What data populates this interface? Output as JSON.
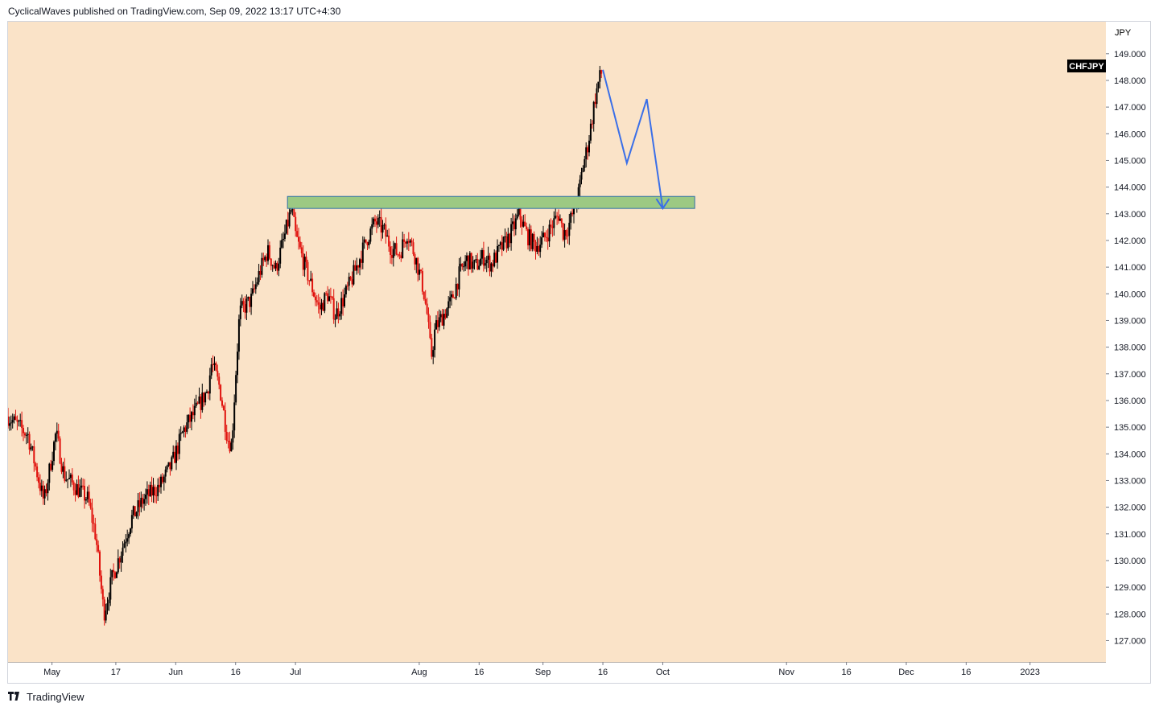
{
  "header": {
    "attribution": "CyclicalWaves published on TradingView.com, Sep 09, 2022 13:17 UTC+4:30"
  },
  "footer": {
    "brand": "TradingView",
    "brand_icon": "tradingview-logo-icon"
  },
  "colors": {
    "background": "#fae3c8",
    "up_candle": "#000000",
    "down_candle": "#e0120d",
    "zone_fill": "#9cc983",
    "zone_border": "#2e6fa8",
    "projection": "#3a6fe8",
    "symbol_badge_bg": "#000000",
    "symbol_badge_text": "#ffffff"
  },
  "chart_data": {
    "type": "candlestick",
    "symbol": "CHFJPY",
    "currency_label": "JPY",
    "ylim": [
      126.2,
      150.2
    ],
    "y_ticks": [
      127,
      128,
      129,
      130,
      131,
      132,
      133,
      134,
      135,
      136,
      137,
      138,
      139,
      140,
      141,
      142,
      143,
      144,
      145,
      146,
      147,
      148,
      149
    ],
    "y_tick_labels": [
      "127.000",
      "128.000",
      "129.000",
      "130.000",
      "131.000",
      "132.000",
      "133.000",
      "134.000",
      "135.000",
      "136.000",
      "137.000",
      "138.000",
      "139.000",
      "140.000",
      "141.000",
      "142.000",
      "143.000",
      "144.000",
      "145.000",
      "146.000",
      "147.000",
      "148.000",
      "149.000"
    ],
    "x_range": [
      "2022-04-20",
      "2023-01-20"
    ],
    "x_ticks": [
      {
        "date": "2022-05-01",
        "label": "May"
      },
      {
        "date": "2022-05-17",
        "label": "17"
      },
      {
        "date": "2022-06-01",
        "label": "Jun"
      },
      {
        "date": "2022-06-16",
        "label": "16"
      },
      {
        "date": "2022-07-01",
        "label": "Jul"
      },
      {
        "date": "2022-08-01",
        "label": "Aug"
      },
      {
        "date": "2022-08-16",
        "label": "16"
      },
      {
        "date": "2022-09-01",
        "label": "Sep"
      },
      {
        "date": "2022-09-16",
        "label": "16"
      },
      {
        "date": "2022-10-01",
        "label": "Oct"
      },
      {
        "date": "2022-11-01",
        "label": "Nov"
      },
      {
        "date": "2022-11-16",
        "label": "16"
      },
      {
        "date": "2022-12-01",
        "label": "Dec"
      },
      {
        "date": "2022-12-16",
        "label": "16"
      },
      {
        "date": "2023-01-01",
        "label": "2023"
      }
    ],
    "price_path": [
      [
        "2022-04-20",
        135.4
      ],
      [
        "2022-04-25",
        134.7
      ],
      [
        "2022-04-29",
        132.2
      ],
      [
        "2022-05-02",
        134.8
      ],
      [
        "2022-05-04",
        133.2
      ],
      [
        "2022-05-08",
        132.6
      ],
      [
        "2022-05-10",
        132.3
      ],
      [
        "2022-05-12",
        130.9
      ],
      [
        "2022-05-14",
        128.0
      ],
      [
        "2022-05-16",
        129.3
      ],
      [
        "2022-05-18",
        130.2
      ],
      [
        "2022-05-21",
        131.6
      ],
      [
        "2022-05-24",
        132.3
      ],
      [
        "2022-05-28",
        132.8
      ],
      [
        "2022-05-31",
        133.6
      ],
      [
        "2022-06-03",
        134.9
      ],
      [
        "2022-06-06",
        135.6
      ],
      [
        "2022-06-09",
        136.4
      ],
      [
        "2022-06-10",
        137.4
      ],
      [
        "2022-06-12",
        136.5
      ],
      [
        "2022-06-14",
        134.6
      ],
      [
        "2022-06-15",
        134.3
      ],
      [
        "2022-06-16",
        136.9
      ],
      [
        "2022-06-17",
        139.3
      ],
      [
        "2022-06-20",
        139.8
      ],
      [
        "2022-06-22",
        140.8
      ],
      [
        "2022-06-24",
        141.6
      ],
      [
        "2022-06-26",
        140.9
      ],
      [
        "2022-06-28",
        142.0
      ],
      [
        "2022-06-30",
        143.2
      ],
      [
        "2022-07-01",
        142.2
      ],
      [
        "2022-07-03",
        141.2
      ],
      [
        "2022-07-05",
        140.3
      ],
      [
        "2022-07-07",
        139.4
      ],
      [
        "2022-07-09",
        140.0
      ],
      [
        "2022-07-11",
        139.2
      ],
      [
        "2022-07-13",
        139.8
      ],
      [
        "2022-07-15",
        140.5
      ],
      [
        "2022-07-17",
        141.3
      ],
      [
        "2022-07-19",
        142.1
      ],
      [
        "2022-07-21",
        142.7
      ],
      [
        "2022-07-23",
        142.4
      ],
      [
        "2022-07-25",
        141.7
      ],
      [
        "2022-07-27",
        141.5
      ],
      [
        "2022-07-29",
        142.3
      ],
      [
        "2022-07-31",
        141.4
      ],
      [
        "2022-08-02",
        140.2
      ],
      [
        "2022-08-03",
        139.2
      ],
      [
        "2022-08-04",
        137.6
      ],
      [
        "2022-08-05",
        138.7
      ],
      [
        "2022-08-07",
        139.2
      ],
      [
        "2022-08-09",
        139.7
      ],
      [
        "2022-08-11",
        140.7
      ],
      [
        "2022-08-13",
        141.3
      ],
      [
        "2022-08-15",
        141.0
      ],
      [
        "2022-08-17",
        141.4
      ],
      [
        "2022-08-19",
        141.1
      ],
      [
        "2022-08-21",
        141.6
      ],
      [
        "2022-08-23",
        142.0
      ],
      [
        "2022-08-25",
        142.6
      ],
      [
        "2022-08-26",
        143.0
      ],
      [
        "2022-08-28",
        142.2
      ],
      [
        "2022-08-30",
        141.8
      ],
      [
        "2022-09-01",
        142.0
      ],
      [
        "2022-09-03",
        142.5
      ],
      [
        "2022-09-05",
        143.0
      ],
      [
        "2022-09-06",
        142.3
      ],
      [
        "2022-09-07",
        142.4
      ],
      [
        "2022-09-08",
        142.8
      ],
      [
        "2022-09-09",
        143.3
      ],
      [
        "2022-09-10",
        143.8
      ],
      [
        "2022-09-11",
        144.8
      ],
      [
        "2022-09-12",
        145.4
      ],
      [
        "2022-09-13",
        146.3
      ],
      [
        "2022-09-14",
        147.3
      ],
      [
        "2022-09-15",
        148.0
      ],
      [
        "2022-09-16",
        148.4
      ]
    ],
    "shapes": [
      {
        "kind": "rectangle",
        "name": "support-resistance-zone",
        "x0": "2022-06-29",
        "x1": "2022-10-09",
        "y0": 143.2,
        "y1": 143.65
      },
      {
        "kind": "polyline",
        "name": "price-projection-path",
        "points": [
          [
            "2022-09-16",
            148.4
          ],
          [
            "2022-09-22",
            144.9
          ],
          [
            "2022-09-27",
            147.3
          ],
          [
            "2022-10-01",
            143.2
          ]
        ]
      },
      {
        "kind": "arrowhead",
        "name": "projection-arrowhead",
        "tip": [
          "2022-10-01",
          143.2
        ]
      }
    ]
  }
}
